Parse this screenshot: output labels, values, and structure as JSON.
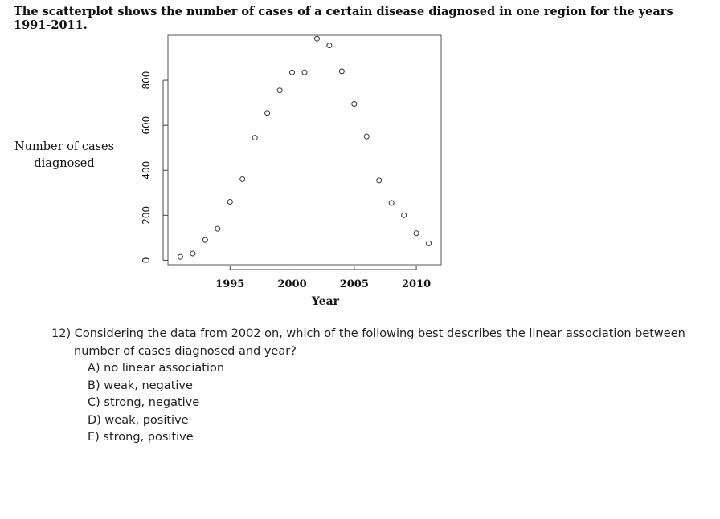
{
  "intro_text": "The scatterplot shows the number of cases of a certain disease diagnosed in one region for the years 1991-2011.",
  "side_label": {
    "line1": "Number of cases",
    "line2": "diagnosed"
  },
  "question": {
    "stem": "12) Considering the data from 2002 on, which of the following best describes the linear association between number of cases diagnosed and year?",
    "choices": [
      "A) no linear association",
      "B) weak, negative",
      "C) strong, negative",
      "D) weak, positive",
      "E) strong, positive"
    ]
  },
  "chart_data": {
    "type": "scatter",
    "title": "",
    "xlabel": "Year",
    "ylabel": "",
    "xlim": [
      1990,
      2012
    ],
    "ylim": [
      -20,
      1000
    ],
    "x_ticks": [
      1995,
      2000,
      2005,
      2010
    ],
    "y_ticks": [
      0,
      200,
      400,
      600,
      800
    ],
    "grid": false,
    "points": [
      {
        "x": 1991,
        "y": 15
      },
      {
        "x": 1992,
        "y": 30
      },
      {
        "x": 1993,
        "y": 90
      },
      {
        "x": 1994,
        "y": 140
      },
      {
        "x": 1995,
        "y": 260
      },
      {
        "x": 1996,
        "y": 360
      },
      {
        "x": 1997,
        "y": 545
      },
      {
        "x": 1998,
        "y": 655
      },
      {
        "x": 1999,
        "y": 755
      },
      {
        "x": 2000,
        "y": 835
      },
      {
        "x": 2001,
        "y": 835
      },
      {
        "x": 2002,
        "y": 985
      },
      {
        "x": 2003,
        "y": 955
      },
      {
        "x": 2004,
        "y": 840
      },
      {
        "x": 2005,
        "y": 695
      },
      {
        "x": 2006,
        "y": 550
      },
      {
        "x": 2007,
        "y": 355
      },
      {
        "x": 2008,
        "y": 255
      },
      {
        "x": 2009,
        "y": 200
      },
      {
        "x": 2010,
        "y": 120
      },
      {
        "x": 2011,
        "y": 75
      }
    ]
  }
}
